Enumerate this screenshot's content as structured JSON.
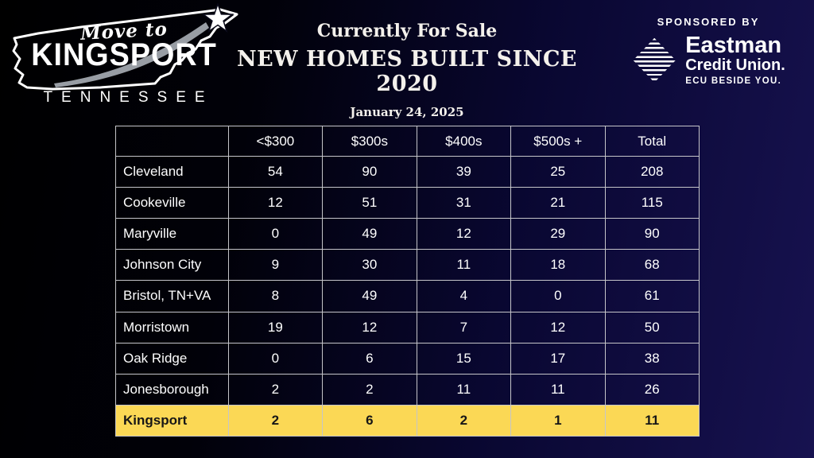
{
  "colors": {
    "background_left": "#000000",
    "background_right": "#171250",
    "highlight_yellow": "#FBD855",
    "table_border": "#c5c5c9",
    "text_white": "#ffffff"
  },
  "logo": {
    "move_to": "Move to",
    "city": "KINGSPORT",
    "state": "TENNESSEE"
  },
  "title": {
    "line1": "Currently For Sale",
    "line2": "NEW HOMES BUILT SINCE 2020",
    "date": "January 24, 2025"
  },
  "sponsor": {
    "label": "SPONSORED BY",
    "brand_line1": "Eastman",
    "brand_line2": "Credit Union.",
    "tagline": "ECU BESIDE YOU."
  },
  "chart_data": {
    "type": "table",
    "title": "Currently For Sale — New Homes Built Since 2020",
    "date": "January 24, 2025",
    "columns": [
      "",
      "<$300",
      "$300s",
      "$400s",
      "$500s +",
      "Total"
    ],
    "rows": [
      {
        "city": "Cleveland",
        "values": [
          54,
          90,
          39,
          25,
          208
        ]
      },
      {
        "city": "Cookeville",
        "values": [
          12,
          51,
          31,
          21,
          115
        ]
      },
      {
        "city": "Maryville",
        "values": [
          0,
          49,
          12,
          29,
          90
        ]
      },
      {
        "city": "Johnson City",
        "values": [
          9,
          30,
          11,
          18,
          68
        ]
      },
      {
        "city": "Bristol, TN+VA",
        "values": [
          8,
          49,
          4,
          0,
          61
        ]
      },
      {
        "city": "Morristown",
        "values": [
          19,
          12,
          7,
          12,
          50
        ]
      },
      {
        "city": "Oak Ridge",
        "values": [
          0,
          6,
          15,
          17,
          38
        ]
      },
      {
        "city": "Jonesborough",
        "values": [
          2,
          2,
          11,
          11,
          26
        ]
      },
      {
        "city": "Kingsport",
        "values": [
          2,
          6,
          2,
          1,
          11
        ],
        "highlight": true
      }
    ],
    "highlight_row": "Kingsport",
    "highlight_color": "#FBD855"
  }
}
